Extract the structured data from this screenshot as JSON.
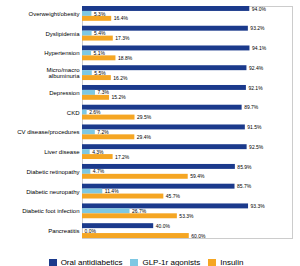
{
  "chart_data": {
    "type": "bar",
    "orientation": "horizontal",
    "categories": [
      "Overweight/obesity",
      "Dyslipidemia",
      "Hypertension",
      "Micro/macro\nalbuminuria",
      "Depression",
      "CKD",
      "CV disease/procedures",
      "Liver disease",
      "Diabetic retinopathy",
      "Diabetic neuropathy",
      "Diabetic foot infection",
      "Pancreatitis"
    ],
    "series": [
      {
        "name": "Oral antidiabetics",
        "color": "#1b3a8c",
        "values": [
          94.0,
          93.2,
          94.1,
          92.4,
          92.1,
          89.7,
          91.5,
          92.5,
          85.9,
          85.7,
          93.3,
          40.0
        ],
        "value_labels": [
          "94.0%",
          "93.2%",
          "94.1%",
          "92.4%",
          "92.1%",
          "89.7%",
          "91.5%",
          "92.5%",
          "85.9%",
          "85.7%",
          "93.3%",
          "40.0%"
        ]
      },
      {
        "name": "GLP-1r agonists",
        "color": "#7ec8e3",
        "values": [
          5.3,
          5.4,
          5.1,
          5.5,
          7.3,
          2.6,
          7.2,
          4.3,
          4.7,
          11.4,
          26.7,
          0.0
        ],
        "value_labels": [
          "5.3%",
          "5.4%",
          "5.1%",
          "5.5%",
          "7.3%",
          "2.6%",
          "7.2%",
          "4.3%",
          "4.7%",
          "11.4%",
          "26.7%",
          "0.0%"
        ]
      },
      {
        "name": "Insulin",
        "color": "#f5a623",
        "values": [
          16.4,
          17.3,
          18.8,
          16.2,
          15.2,
          29.5,
          29.4,
          17.2,
          59.4,
          45.7,
          53.3,
          60.0
        ],
        "value_labels": [
          "16.4%",
          "17.3%",
          "18.8%",
          "16.2%",
          "15.2%",
          "29.5%",
          "29.4%",
          "17.2%",
          "59.4%",
          "45.7%",
          "53.3%",
          "60.0%"
        ]
      }
    ],
    "xlim": [
      0,
      118
    ],
    "xticks": [],
    "data_labels": true,
    "tick_labels": "y",
    "legend": "bottom"
  }
}
